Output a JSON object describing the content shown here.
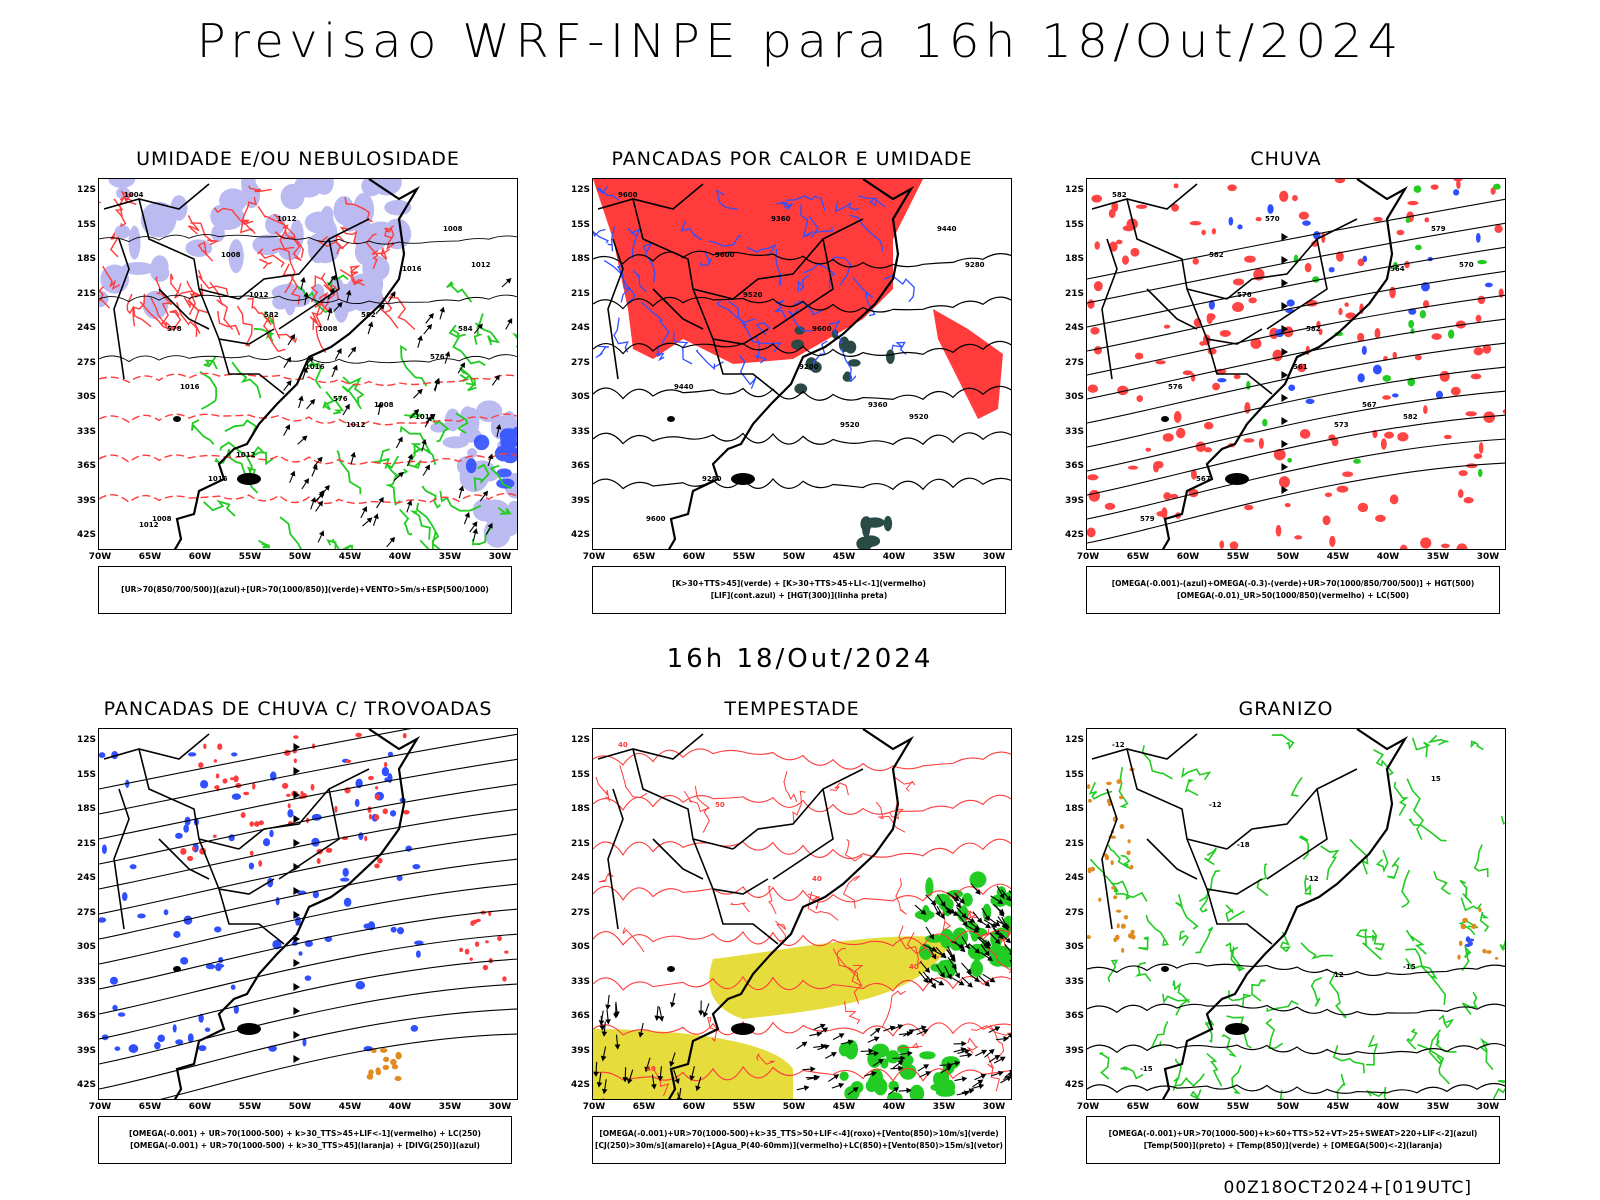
{
  "title": "Previsao WRF-INPE  para 16h 18/Out/2024",
  "mid_time": "16h 18/Out/2024",
  "footer": "00Z18OCT2024+[019UTC]",
  "axes": {
    "lat_labels": [
      "12S",
      "15S",
      "18S",
      "21S",
      "24S",
      "27S",
      "30S",
      "33S",
      "36S",
      "39S",
      "42S"
    ],
    "lon_labels": [
      "70W",
      "65W",
      "60W",
      "55W",
      "50W",
      "45W",
      "40W",
      "35W",
      "30W"
    ]
  },
  "colors": {
    "red": "#ff3b3b",
    "green": "#22cc22",
    "blue": "#3050ff",
    "lavender": "#b4b4f0",
    "yellow": "#e6dc3c",
    "darkgreen": "#2a4a45",
    "orange": "#e08a20"
  },
  "panels": [
    {
      "title": "UMIDADE E/OU NEBULOSIDADE",
      "legend": [
        "[UR>70(850/700/500)](azul)+[UR>70(1000/850)](verde)+VENTO>5m/s+ESP(500/1000)"
      ],
      "contour_labels": [
        "1004",
        "1008",
        "1008",
        "1012",
        "1008",
        "1012",
        "1012",
        "1008",
        "1016",
        "1012",
        "1008",
        "1012",
        "1016",
        "1016",
        "1016",
        "1012",
        "1012",
        "576",
        "576",
        "578",
        "582",
        "582",
        "584"
      ]
    },
    {
      "title": "PANCADAS POR CALOR E UMIDADE",
      "legend": [
        "[K>30+TTS>45](verde) + [K>30+TTS>45+LI<-1](vermelho)",
        "[LIF](cont.azul) + [HGT(300)](linha preta)"
      ],
      "contour_labels": [
        "9600",
        "9600",
        "9600",
        "9520",
        "9600",
        "9520",
        "9520",
        "9440",
        "9440",
        "9360",
        "9360",
        "9280",
        "9280",
        "9200"
      ]
    },
    {
      "title": "CHUVA",
      "legend": [
        "[OMEGA(-0.001)-(azul)+OMEGA(-0.3)-(verde)+UR>70(1000/850/700/500)] + HGT(500)",
        "[OMEGA(-0.01)_UR>50(1000/850)(vermelho) + LC(500)"
      ],
      "contour_labels": [
        "582",
        "582",
        "582",
        "582",
        "579",
        "576",
        "573",
        "579",
        "576",
        "570",
        "567",
        "570",
        "567",
        "561",
        "564"
      ]
    },
    {
      "title": "PANCADAS DE CHUVA C/ TROVOADAS",
      "legend": [
        "[OMEGA(-0.001) + UR>70(1000-500) + k>30_TTS>45+LIF<-1](vermelho) + LC(250)",
        "[OMEGA(-0.001) + UR>70(1000-500) + k>30_TTS>45](laranja) + [DIVG(250)](azul)"
      ],
      "contour_labels": []
    },
    {
      "title": "TEMPESTADE",
      "legend": [
        "[OMEGA(-0.001)+UR>70(1000-500)+k>35_TTS>50+LIF<-4](roxo)+[Vento(850)>10m/s](verde)",
        "[CJ(250)>30m/s](amarelo)+[Agua_P(40-60mm)](vermelho)+LC(850)+[Vento(850)>15m/s](vetor)"
      ],
      "contour_labels": [
        "40",
        "50",
        "40",
        "40",
        "40"
      ]
    },
    {
      "title": "GRANIZO",
      "legend": [
        "[OMEGA(-0.001)+UR>70(1000-500)+k>60+TTS>52+VT>25+SWEAT>220+LIF<-2](azul)",
        "[Temp(500)](preto) + [Temp(850)](verde) + [OMEGA(500)<-2](laranja)"
      ],
      "contour_labels": [
        "-12",
        "-12",
        "-12",
        "-15",
        "-15",
        "-18",
        "12",
        "15"
      ]
    }
  ]
}
